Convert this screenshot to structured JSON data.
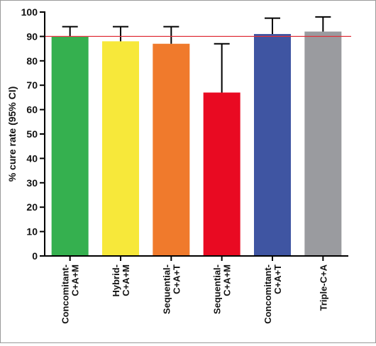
{
  "chart_data": {
    "type": "bar",
    "title": "",
    "xlabel": "",
    "ylabel": "% cure rate (95% CI)",
    "ylim": [
      0,
      100
    ],
    "yticks": [
      0,
      10,
      20,
      30,
      40,
      50,
      60,
      70,
      80,
      90,
      100
    ],
    "grid": false,
    "legend": "none",
    "categories": [
      [
        "Concomitant-",
        "C+A+M"
      ],
      [
        "Hybrid-",
        "C+A+M"
      ],
      [
        "Sequential-",
        "C+A+T"
      ],
      [
        "Sequential-",
        "C+A+M"
      ],
      [
        "Concomitant-",
        "C+A+T"
      ],
      [
        "Triple-C+A"
      ]
    ],
    "values": [
      90,
      88,
      87,
      67,
      91,
      92
    ],
    "error_upper": [
      94,
      94,
      94,
      87,
      97.5,
      98
    ],
    "colors": [
      "#35b04f",
      "#f7e83a",
      "#f07a2c",
      "#e90a22",
      "#3f55a2",
      "#9a9b9f"
    ],
    "reference_line": {
      "value": 90,
      "color": "#e0303a"
    }
  }
}
